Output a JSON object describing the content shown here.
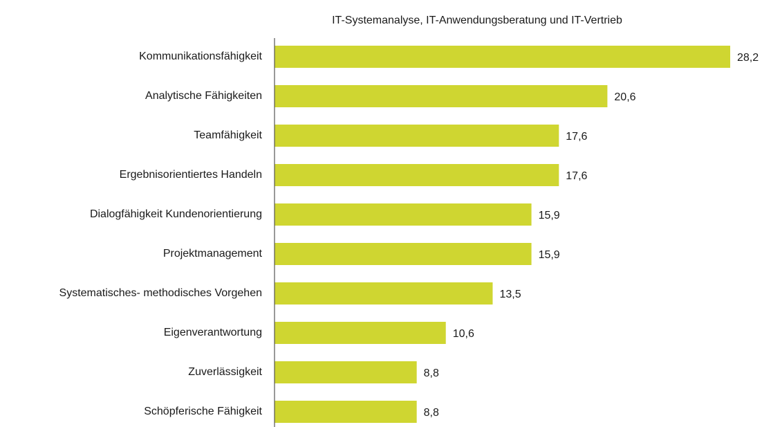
{
  "chart_data": {
    "type": "bar",
    "orientation": "horizontal",
    "title": "IT-Systemanalyse, IT-Anwendungsberatung und IT-Vertrieb",
    "categories": [
      "Kommunikationsfähigkeit",
      "Analytische Fähigkeiten",
      "Teamfähigkeit",
      "Ergebnisorientiertes Handeln",
      "Dialogfähigkeit Kundenorientierung",
      "Projektmanagement",
      "Systematisches- methodisches Vorgehen",
      "Eigenverantwortung",
      "Zuverlässigkeit",
      "Schöpferische Fähigkeit"
    ],
    "values": [
      28.2,
      20.6,
      17.6,
      17.6,
      15.9,
      15.9,
      13.5,
      10.6,
      8.8,
      8.8
    ],
    "value_labels": [
      "28,2",
      "20,6",
      "17,6",
      "17,6",
      "15,9",
      "15,9",
      "13,5",
      "10,6",
      "8,8",
      "8,8"
    ],
    "color": "#cfd631"
  }
}
